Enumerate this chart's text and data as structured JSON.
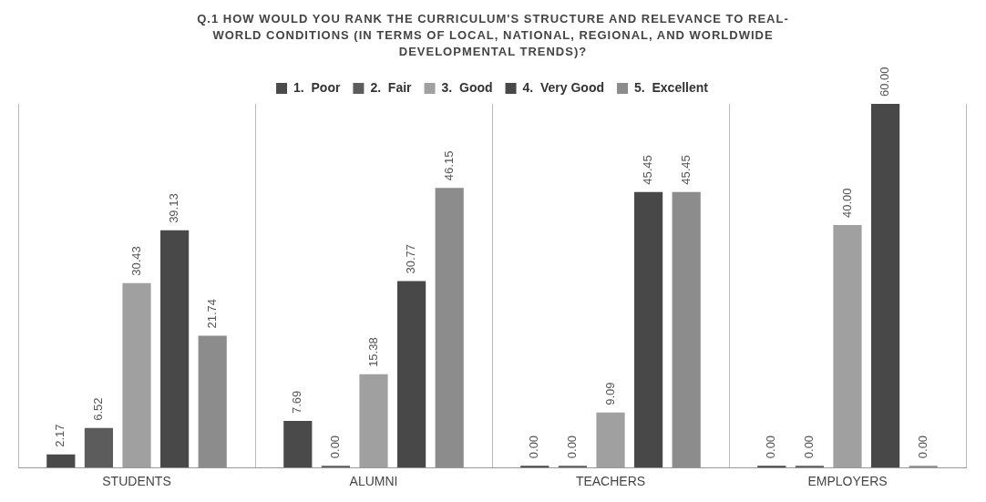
{
  "chart_data": {
    "type": "bar",
    "title": "Q.1    HOW WOULD YOU RANK THE CURRICULUM'S STRUCTURE AND RELEVANCE TO REAL-WORLD CONDITIONS (IN TERMS OF LOCAL, NATIONAL, REGIONAL, AND WORLDWIDE DEVELOPMENTAL TRENDS)?",
    "categories": [
      "STUDENTS",
      "ALUMNI",
      "TEACHERS",
      "EMPLOYERS"
    ],
    "series": [
      {
        "name": "1.  Poor",
        "color": "#4a4a4a",
        "values": [
          2.17,
          7.69,
          0,
          0
        ],
        "value_labels": [
          "2.17",
          "7.69",
          "0.00",
          "0.00"
        ]
      },
      {
        "name": "2.  Fair",
        "color": "#5c5c5c",
        "values": [
          6.52,
          0,
          0,
          0
        ],
        "value_labels": [
          "6.52",
          "0.00",
          "0.00",
          "0.00"
        ]
      },
      {
        "name": "3.  Good",
        "color": "#a0a0a0",
        "values": [
          30.43,
          15.38,
          9.09,
          40
        ],
        "value_labels": [
          "30.43",
          "15.38",
          "9.09",
          "40.00"
        ]
      },
      {
        "name": "4.  Very Good",
        "color": "#484848",
        "values": [
          39.13,
          30.77,
          45.45,
          60
        ],
        "value_labels": [
          "39.13",
          "30.77",
          "45.45",
          "60.00"
        ]
      },
      {
        "name": "5.  Excellent",
        "color": "#8c8c8c",
        "values": [
          21.74,
          46.15,
          45.45,
          0
        ],
        "value_labels": [
          "21.74",
          "46.15",
          "45.45",
          "0.00"
        ]
      }
    ],
    "grid": "x",
    "legend": "top",
    "tick_labels": "x"
  }
}
